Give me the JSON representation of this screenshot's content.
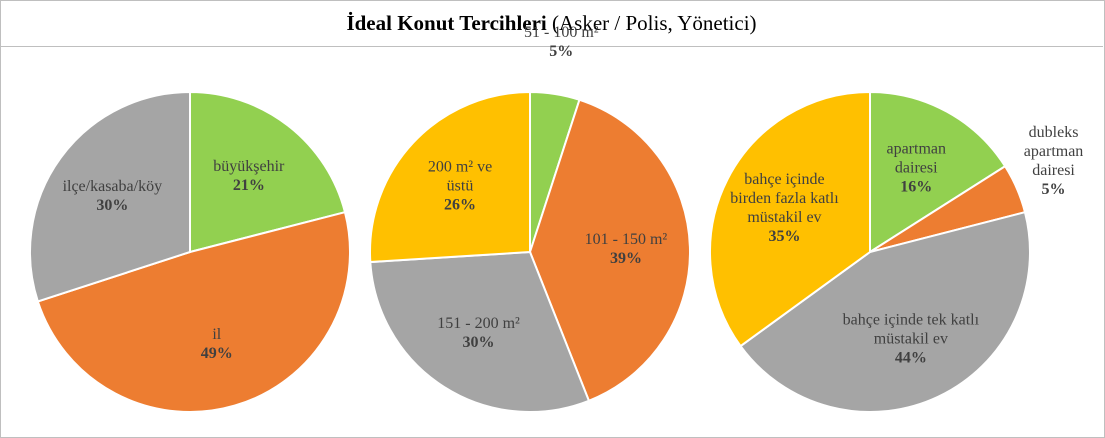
{
  "title": "İdeal Konut Tercihleri",
  "subtitle": "(Asker / Polis, Yönetici)",
  "chart_data": [
    {
      "type": "pie",
      "categories": [
        "büyükşehir",
        "il",
        "ilçe/kasaba/köy"
      ],
      "values": [
        21,
        49,
        30
      ],
      "value_labels": [
        "21%",
        "49%",
        "30%"
      ],
      "colors": [
        "#92d050",
        "#ed7d31",
        "#a5a5a5"
      ]
    },
    {
      "type": "pie",
      "categories": [
        "51 - 100 m²",
        "101 - 150 m²",
        "151 - 200 m²",
        "200 m² ve üstü"
      ],
      "values": [
        5,
        39,
        30,
        26
      ],
      "value_labels": [
        "5%",
        "39%",
        "30%",
        "26%"
      ],
      "colors": [
        "#92d050",
        "#ed7d31",
        "#a5a5a5",
        "#ffc000"
      ]
    },
    {
      "type": "pie",
      "categories": [
        "apartman dairesi",
        "dubleks apartman dairesi",
        "bahçe içinde tek katlı müstakil ev",
        "bahçe içinde birden fazla katlı müstakil ev"
      ],
      "values": [
        16,
        5,
        44,
        35
      ],
      "value_labels": [
        "16%",
        "5%",
        "44%",
        "35%"
      ],
      "colors": [
        "#92d050",
        "#ed7d31",
        "#a5a5a5",
        "#ffc000"
      ]
    }
  ]
}
